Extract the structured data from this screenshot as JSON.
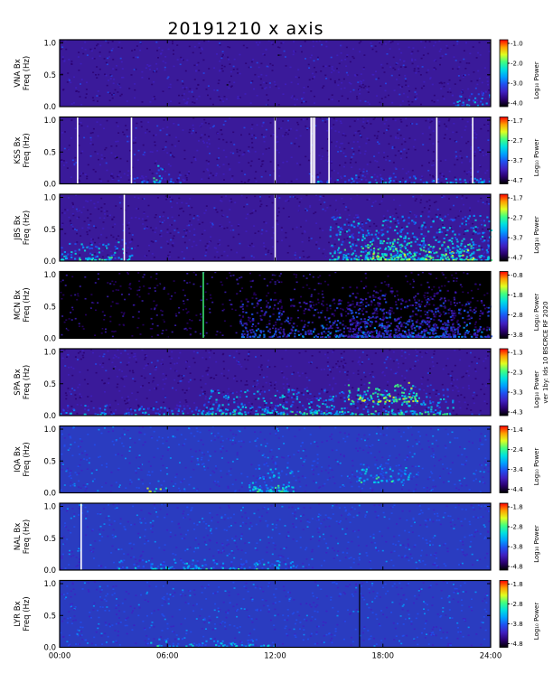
{
  "title": "20191210 x axis",
  "side_note": "ver 1by: Ids 10 BSCRCE RF 2020",
  "chart_data": {
    "type": "heatmap",
    "title": "20191210 x axis",
    "x_label": "",
    "x_ticks": [
      "00:00",
      "06:00",
      "12:00",
      "18:00",
      "24:00"
    ],
    "x_range_hours": [
      0,
      24
    ],
    "y_range_hz": [
      0,
      1.05
    ],
    "y_ticks": [
      "0.0",
      "0.5",
      "1.0"
    ],
    "colorbar_label": "Log₁₀ Power",
    "colormap": [
      "#000000",
      "#2a0070",
      "#3f1fc0",
      "#1f4ff0",
      "#00a0ff",
      "#00e0e0",
      "#40ff80",
      "#e0ff20",
      "#ffa000",
      "#ff0000"
    ],
    "panels": [
      {
        "station": "VNA Bx",
        "ylabel": "Freq (Hz)",
        "cb_ticks": [
          "-1.0",
          "-2.0",
          "-3.0",
          "-4.0"
        ],
        "background": "#3a1a9a",
        "activity": [
          {
            "x": [
              22.0,
              24.0
            ],
            "y": [
              0,
              0.2
            ],
            "level": 0.45
          }
        ],
        "gaps": []
      },
      {
        "station": "KSS Bx",
        "ylabel": "Freq (Hz)",
        "cb_ticks": [
          "-1.7",
          "-2.7",
          "-3.7",
          "-4.7"
        ],
        "background": "#3a1a9a",
        "activity": [
          {
            "x": [
              5.2,
              5.8
            ],
            "y": [
              0,
              0.3
            ],
            "level": 0.6
          },
          {
            "x": [
              4.0,
              7.0
            ],
            "y": [
              0,
              0.12
            ],
            "level": 0.4
          },
          {
            "x": [
              14.0,
              24.0
            ],
            "y": [
              0,
              0.12
            ],
            "level": 0.45
          }
        ],
        "gaps": [
          1.0,
          4.0,
          12.0,
          14.0,
          14.1,
          14.2,
          15.0,
          21.0,
          23.0
        ]
      },
      {
        "station": "JBS Bx",
        "ylabel": "Freq (Hz)",
        "cb_ticks": [
          "-1.7",
          "-2.7",
          "-3.7",
          "-4.7"
        ],
        "background": "#3a1a9a",
        "activity": [
          {
            "x": [
              0,
              4.0
            ],
            "y": [
              0,
              0.3
            ],
            "level": 0.55
          },
          {
            "x": [
              15.0,
              24.0
            ],
            "y": [
              0,
              0.7
            ],
            "level": 0.55
          },
          {
            "x": [
              17.0,
              23.0
            ],
            "y": [
              0,
              0.35
            ],
            "level": 0.7
          }
        ],
        "gaps": [
          3.6,
          12.0
        ]
      },
      {
        "station": "MCN Bx",
        "ylabel": "Freq (Hz)",
        "cb_ticks": [
          "-0.8",
          "-1.8",
          "-2.8",
          "-3.8"
        ],
        "background": "#000000",
        "activity": [
          {
            "x": [
              10.0,
              24.0
            ],
            "y": [
              0,
              0.6
            ],
            "level": 0.35
          },
          {
            "x": [
              16.0,
              22.0
            ],
            "y": [
              0,
              0.8
            ],
            "level": 0.3
          }
        ],
        "gaps": [],
        "spikes": [
          8.0
        ]
      },
      {
        "station": "SPA Bx",
        "ylabel": "Freq (Hz)",
        "cb_ticks": [
          "-1.3",
          "-2.3",
          "-3.3",
          "-4.3"
        ],
        "background": "#3a1a9a",
        "activity": [
          {
            "x": [
              8.0,
              22.0
            ],
            "y": [
              0,
              0.4
            ],
            "level": 0.55
          },
          {
            "x": [
              16.0,
              20.0
            ],
            "y": [
              0.2,
              0.5
            ],
            "level": 0.75
          },
          {
            "x": [
              0,
              8.0
            ],
            "y": [
              0,
              0.15
            ],
            "level": 0.45
          }
        ],
        "gaps": []
      },
      {
        "station": "IQA Bx",
        "ylabel": "Freq (Hz)",
        "cb_ticks": [
          "-1.4",
          "-2.4",
          "-3.4",
          "-4.4"
        ],
        "background": "#2a3cc0",
        "activity": [
          {
            "x": [
              10.5,
              13.0
            ],
            "y": [
              0,
              0.45
            ],
            "level": 0.55
          },
          {
            "x": [
              16.5,
              19.5
            ],
            "y": [
              0.15,
              0.45
            ],
            "level": 0.55
          },
          {
            "x": [
              4.5,
              6.0
            ],
            "y": [
              0,
              0.06
            ],
            "level": 0.8
          }
        ],
        "gaps": []
      },
      {
        "station": "NAL Bx",
        "ylabel": "Freq (Hz)",
        "cb_ticks": [
          "-1.8",
          "-2.8",
          "-3.8",
          "-4.8"
        ],
        "background": "#2a3cc0",
        "activity": [
          {
            "x": [
              3.0,
              13.0
            ],
            "y": [
              0,
              0.15
            ],
            "level": 0.5
          }
        ],
        "gaps": [
          1.2
        ]
      },
      {
        "station": "LYR Bx",
        "ylabel": "Freq (Hz)",
        "cb_ticks": [
          "-1.8",
          "-2.8",
          "-3.8",
          "-4.8"
        ],
        "background": "#2a3cc0",
        "activity": [
          {
            "x": [
              5.0,
              12.0
            ],
            "y": [
              0,
              0.12
            ],
            "level": 0.5
          }
        ],
        "gaps": [],
        "dark_lines": [
          16.7
        ]
      }
    ]
  }
}
